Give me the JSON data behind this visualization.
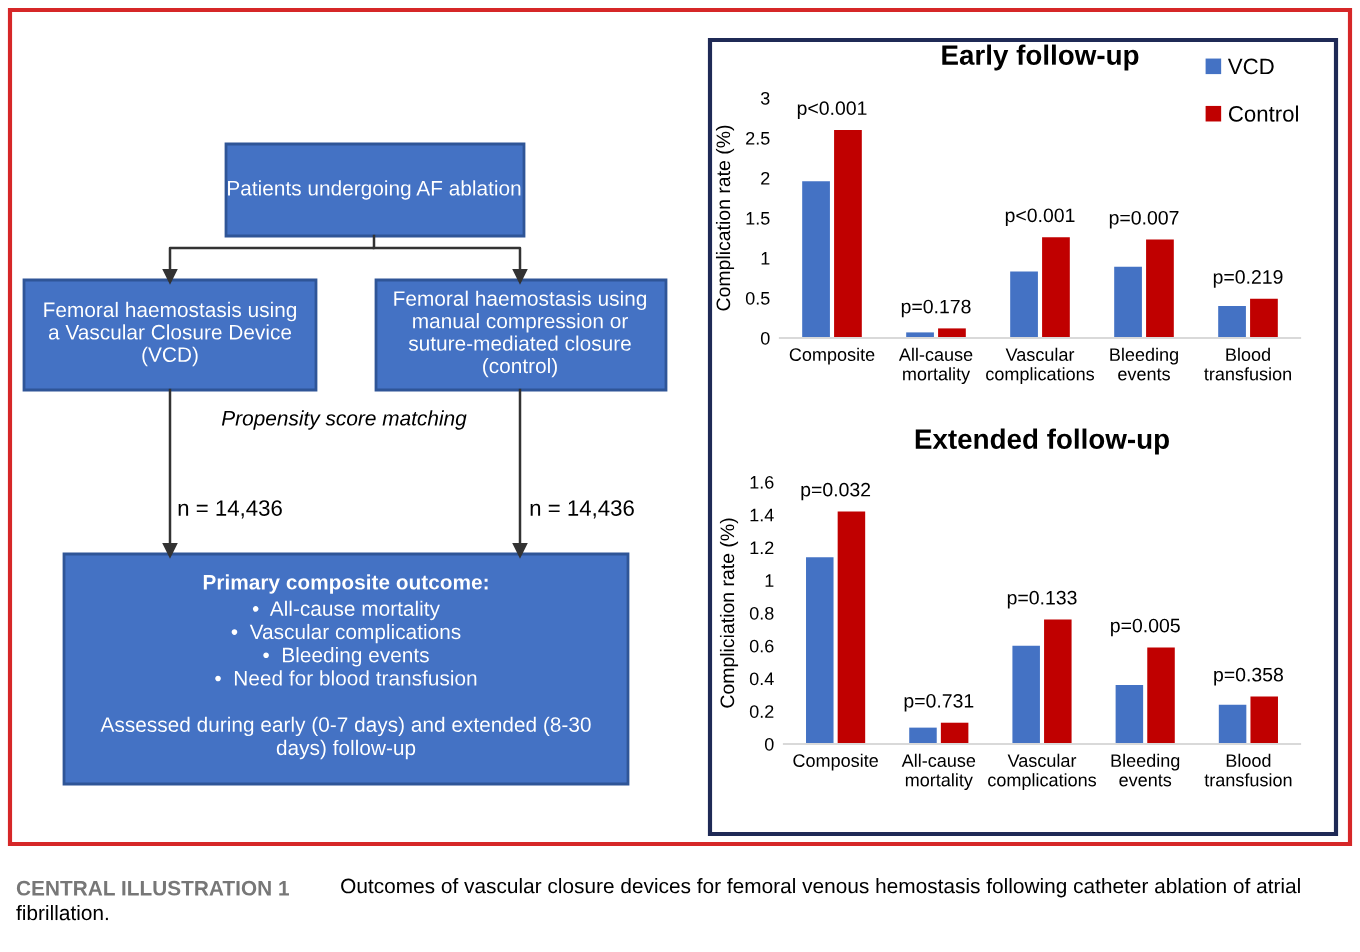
{
  "chart_data": [
    {
      "type": "other",
      "annotations": [
        "Patients undergoing AF ablation",
        "Femoral haemostasis using\na Vascular Closure Device\n(VCD)",
        "Femoral haemostasis using\nmanual compression or\nsuture-mediated closure\n(control)",
        "Propensity score matching",
        "n = 14,436",
        "n = 14,436",
        "Primary composite outcome:",
        "•  All-cause mortality\n•  Vascular complications\n•  Bleeding events\n•  Need for blood transfusion\n\nAssessed during early (0-7 days) and extended (8-30\ndays) follow-up",
        "CENTRAL ILLUSTRATION 1",
        "Outcomes of vascular closure devices for femoral venous hemostasis following catheter ablation of atrial fibrillation."
      ]
    },
    {
      "type": "bar",
      "title": "Early follow-up",
      "ylabel": "Complication rate (%)",
      "categories": [
        "Composite",
        "All-cause\nmortality",
        "Vascular\ncomplications",
        "Bleeding\nevents",
        "Blood\ntransfusion"
      ],
      "series": [
        {
          "name": "VCD",
          "color": "#4472c4",
          "values": [
            1.96,
            0.07,
            0.83,
            0.89,
            0.4
          ]
        },
        {
          "name": "Control",
          "color": "#c00000",
          "values": [
            2.6,
            0.12,
            1.26,
            1.23,
            0.49
          ]
        }
      ],
      "ylim": [
        0,
        3
      ],
      "yticks": [
        0,
        0.5,
        1,
        1.5,
        2,
        2.5,
        3
      ],
      "legend": "top right",
      "annotations": [
        {
          "text": "p<0.001",
          "x": "Composite",
          "y": 2.6
        },
        {
          "text": "p=0.178",
          "x": "All-cause\nmortality",
          "y": 0.12
        },
        {
          "text": "p<0.001",
          "x": "Vascular\ncomplications",
          "y": 1.26
        },
        {
          "text": "p=0.007",
          "x": "Bleeding\nevents",
          "y": 1.23
        },
        {
          "text": "p=0.219",
          "x": "Blood\ntransfusion",
          "y": 0.49
        }
      ]
    },
    {
      "type": "bar",
      "title": "Extended follow-up",
      "ylabel": "Compliciation rate (%)",
      "categories": [
        "Composite",
        "All-cause\nmortality",
        "Vascular\ncomplications",
        "Bleeding\nevents",
        "Blood\ntransfusion"
      ],
      "series": [
        {
          "color": "#4472c4",
          "values": [
            1.14,
            0.1,
            0.6,
            0.36,
            0.24
          ]
        },
        {
          "color": "#c00000",
          "values": [
            1.42,
            0.13,
            0.76,
            0.59,
            0.29
          ]
        }
      ],
      "ylim": [
        0,
        1.6
      ],
      "yticks": [
        0,
        0.2,
        0.4,
        0.6,
        0.8,
        1,
        1.2,
        1.4,
        1.6
      ],
      "annotations": [
        {
          "text": "p=0.032",
          "x": "Composite",
          "y": 1.42
        },
        {
          "text": "p=0.731",
          "x": "All-cause\nmortality",
          "y": 0.13
        },
        {
          "text": "p=0.133",
          "x": "Vascular\ncomplications",
          "y": 0.76
        },
        {
          "text": "p=0.005",
          "x": "Bleeding\nevents",
          "y": 0.59
        },
        {
          "text": "p=0.358",
          "x": "Blood\ntransfusion",
          "y": 0.29
        }
      ]
    }
  ]
}
